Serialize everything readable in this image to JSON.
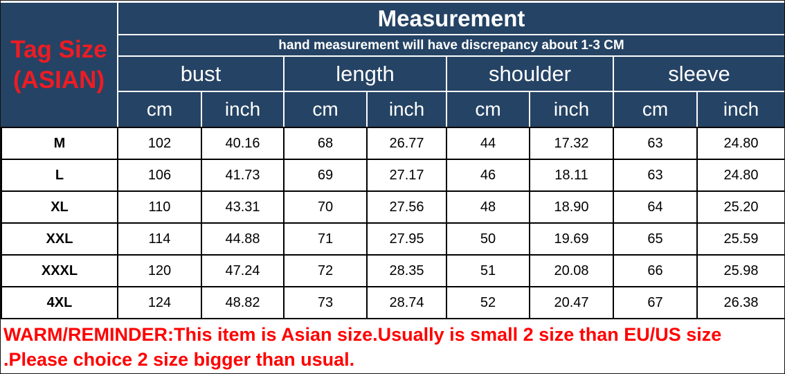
{
  "colors": {
    "header_bg": "#254364",
    "tag_red": "#ed1c24",
    "warning_red": "#ff0000",
    "header_text": "#ffffff",
    "body_text": "#000000",
    "grid_white": "#ffffff",
    "grid_black": "#000000"
  },
  "header": {
    "tag_size_line1": "Tag Size",
    "tag_size_line2": "(ASIAN)",
    "title": "Measurement",
    "subtitle": "hand measurement will have discrepancy about 1-3 CM",
    "groups": [
      "bust",
      "length",
      "shoulder",
      "sleeve"
    ],
    "unit_cm": "cm",
    "unit_inch": "inch"
  },
  "table": {
    "rows": [
      {
        "label": "M",
        "values": [
          "102",
          "40.16",
          "68",
          "26.77",
          "44",
          "17.32",
          "63",
          "24.80"
        ]
      },
      {
        "label": "L",
        "values": [
          "106",
          "41.73",
          "69",
          "27.17",
          "46",
          "18.11",
          "63",
          "24.80"
        ]
      },
      {
        "label": "XL",
        "values": [
          "110",
          "43.31",
          "70",
          "27.56",
          "48",
          "18.90",
          "64",
          "25.20"
        ]
      },
      {
        "label": "XXL",
        "values": [
          "114",
          "44.88",
          "71",
          "27.95",
          "50",
          "19.69",
          "65",
          "25.59"
        ]
      },
      {
        "label": "XXXL",
        "values": [
          "120",
          "47.24",
          "72",
          "28.35",
          "51",
          "20.08",
          "66",
          "25.98"
        ]
      },
      {
        "label": "4XL",
        "values": [
          "124",
          "48.82",
          "73",
          "28.74",
          "52",
          "20.47",
          "67",
          "26.38"
        ]
      }
    ]
  },
  "warning": {
    "text": "WARM/REMINDER:This item is Asian size.Usually is small 2 size than EU/US size .Please choice 2 size bigger than usual."
  },
  "chart_data": {
    "type": "table",
    "title": "Measurement",
    "subtitle": "hand measurement will have discrepancy about 1-3 CM",
    "row_header_title": "Tag Size (ASIAN)",
    "column_groups": [
      "bust",
      "length",
      "shoulder",
      "sleeve"
    ],
    "columns": [
      "bust cm",
      "bust inch",
      "length cm",
      "length inch",
      "shoulder cm",
      "shoulder inch",
      "sleeve cm",
      "sleeve inch"
    ],
    "rows": [
      {
        "size": "M",
        "bust_cm": 102,
        "bust_inch": 40.16,
        "length_cm": 68,
        "length_inch": 26.77,
        "shoulder_cm": 44,
        "shoulder_inch": 17.32,
        "sleeve_cm": 63,
        "sleeve_inch": 24.8
      },
      {
        "size": "L",
        "bust_cm": 106,
        "bust_inch": 41.73,
        "length_cm": 69,
        "length_inch": 27.17,
        "shoulder_cm": 46,
        "shoulder_inch": 18.11,
        "sleeve_cm": 63,
        "sleeve_inch": 24.8
      },
      {
        "size": "XL",
        "bust_cm": 110,
        "bust_inch": 43.31,
        "length_cm": 70,
        "length_inch": 27.56,
        "shoulder_cm": 48,
        "shoulder_inch": 18.9,
        "sleeve_cm": 64,
        "sleeve_inch": 25.2
      },
      {
        "size": "XXL",
        "bust_cm": 114,
        "bust_inch": 44.88,
        "length_cm": 71,
        "length_inch": 27.95,
        "shoulder_cm": 50,
        "shoulder_inch": 19.69,
        "sleeve_cm": 65,
        "sleeve_inch": 25.59
      },
      {
        "size": "XXXL",
        "bust_cm": 120,
        "bust_inch": 47.24,
        "length_cm": 72,
        "length_inch": 28.35,
        "shoulder_cm": 51,
        "shoulder_inch": 20.08,
        "sleeve_cm": 66,
        "sleeve_inch": 25.98
      },
      {
        "size": "4XL",
        "bust_cm": 124,
        "bust_inch": 48.82,
        "length_cm": 73,
        "length_inch": 28.74,
        "shoulder_cm": 52,
        "shoulder_inch": 20.47,
        "sleeve_cm": 67,
        "sleeve_inch": 26.38
      }
    ],
    "warning": "WARM/REMINDER:This item is Asian size.Usually is small 2 size than EU/US size .Please choice 2 size bigger than usual."
  }
}
